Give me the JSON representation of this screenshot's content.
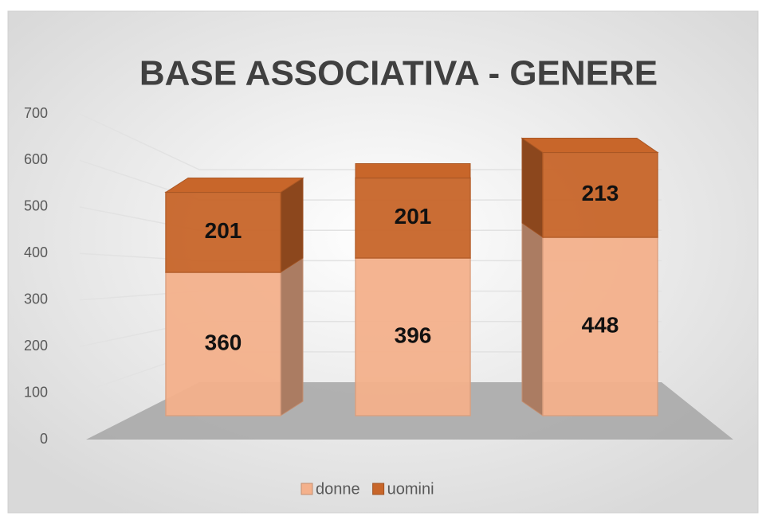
{
  "chart_data": {
    "type": "bar3d_stacked",
    "title": "BASE ASSOCIATIVA - GENERE",
    "categories": [
      null,
      null,
      null
    ],
    "series": [
      {
        "name": "donne",
        "color": "#f4b18c",
        "values": [
          360,
          396,
          448
        ]
      },
      {
        "name": "uomini",
        "color": "#c8662a",
        "values": [
          201,
          201,
          213
        ]
      }
    ],
    "ylim": [
      0,
      700
    ],
    "yticks": [
      0,
      100,
      200,
      300,
      400,
      500,
      600,
      700
    ],
    "grid": true,
    "legend": "bottom"
  }
}
